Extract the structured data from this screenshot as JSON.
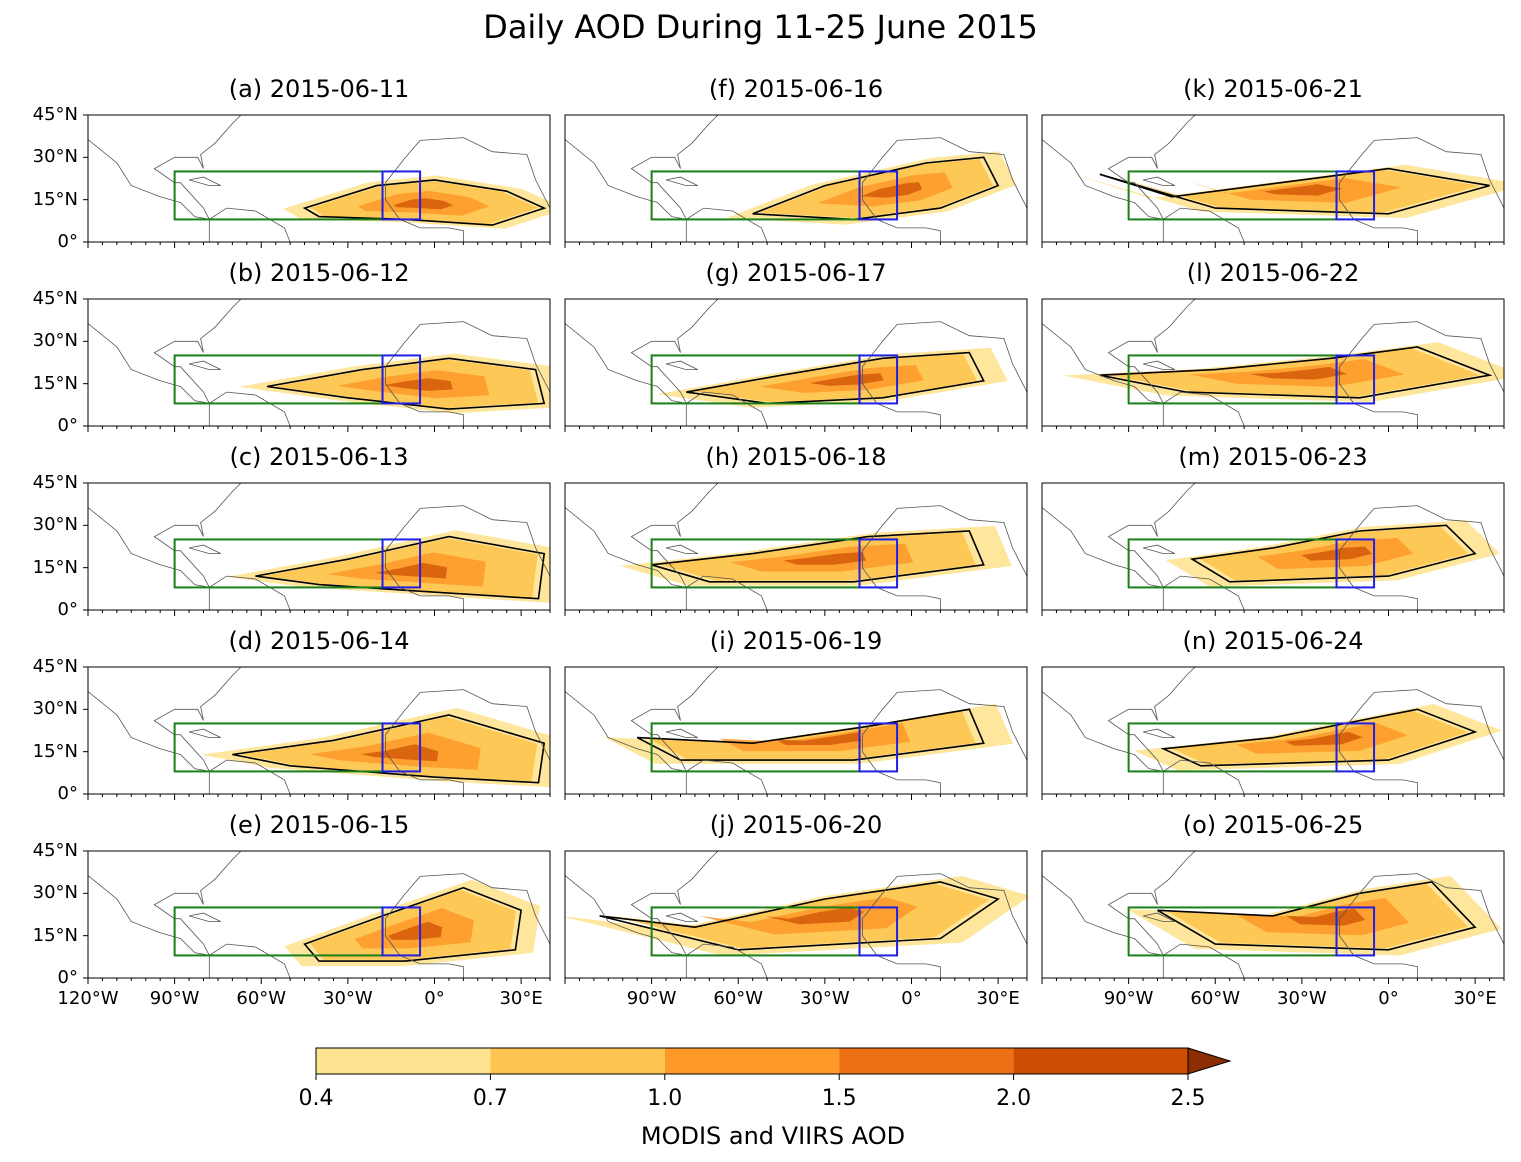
{
  "title": "Daily AOD During 11-25 June 2015",
  "panels": [
    {
      "label": "(a) 2015-06-11"
    },
    {
      "label": "(b) 2015-06-12"
    },
    {
      "label": "(c) 2015-06-13"
    },
    {
      "label": "(d) 2015-06-14"
    },
    {
      "label": "(e) 2015-06-15"
    },
    {
      "label": "(f) 2015-06-16"
    },
    {
      "label": "(g) 2015-06-17"
    },
    {
      "label": "(h) 2015-06-18"
    },
    {
      "label": "(i) 2015-06-19"
    },
    {
      "label": "(j) 2015-06-20"
    },
    {
      "label": "(k) 2015-06-21"
    },
    {
      "label": "(l) 2015-06-22"
    },
    {
      "label": "(m) 2015-06-23"
    },
    {
      "label": "(n) 2015-06-24"
    },
    {
      "label": "(o) 2015-06-25"
    }
  ],
  "lat_ticks": [
    "45°N",
    "30°N",
    "15°N",
    "0°"
  ],
  "lon_ticks_left": [
    "120°W",
    "90°W",
    "60°W",
    "30°W",
    "0°",
    "30°E"
  ],
  "lon_ticks_other": [
    "90°W",
    "60°W",
    "30°W",
    "0°",
    "30°E"
  ],
  "map_extent": {
    "lon": [
      -120,
      40
    ],
    "lat": [
      0,
      45
    ]
  },
  "boxes": {
    "green": {
      "lon": [
        -90,
        -18
      ],
      "lat": [
        8,
        25
      ],
      "color": "#1a7f1a"
    },
    "blue": {
      "lon": [
        -18,
        -5
      ],
      "lat": [
        8,
        25
      ],
      "color": "#1f1fe6"
    }
  },
  "colorbar": {
    "label": "MODIS and VIIRS AOD",
    "ticks": [
      "0.4",
      "0.7",
      "1.0",
      "1.5",
      "2.0",
      "2.5"
    ],
    "colors": [
      "#fee391",
      "#fec44f",
      "#fe9929",
      "#ec7014",
      "#cc4c02",
      "#8c2d04"
    ]
  }
}
